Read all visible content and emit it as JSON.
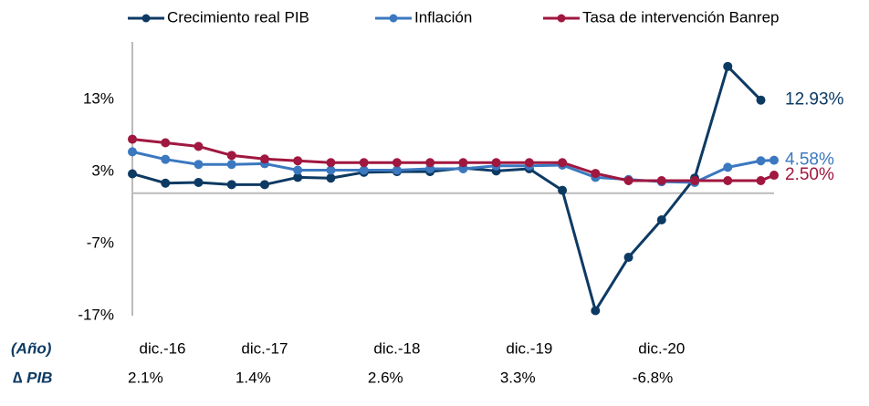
{
  "chart_data": {
    "type": "line",
    "x": [
      0,
      1,
      2,
      3,
      4,
      5,
      6,
      7,
      8,
      9,
      10,
      11,
      12,
      13,
      14,
      15,
      16,
      17,
      18,
      19,
      19.4
    ],
    "xlim": [
      0,
      19.4
    ],
    "xticks": [
      {
        "value": 0,
        "label": "dic.-16"
      },
      {
        "value": 4,
        "label": "dic.-17"
      },
      {
        "value": 8,
        "label": "dic.-18"
      },
      {
        "value": 12,
        "label": "dic.-19"
      },
      {
        "value": 16,
        "label": "dic.-20"
      }
    ],
    "ylim": [
      -17,
      21
    ],
    "yticks": [
      {
        "value": -17,
        "label": "-17%"
      },
      {
        "value": -7,
        "label": "-7%"
      },
      {
        "value": 3,
        "label": "3%"
      },
      {
        "value": 13,
        "label": "13%"
      }
    ],
    "grid": false,
    "legend": "top",
    "series": [
      {
        "name": "Crecimiento real PIB",
        "color": "#0d3a63",
        "values": [
          2.7,
          1.4,
          1.5,
          1.2,
          1.2,
          2.2,
          2.1,
          2.9,
          3.0,
          3.0,
          3.5,
          3.1,
          3.4,
          0.4,
          -16.3,
          -8.9,
          -3.7,
          2.1,
          17.6,
          12.93,
          null
        ],
        "value_labels": [
          null,
          null,
          null,
          null,
          null,
          null,
          null,
          null,
          null,
          null,
          null,
          null,
          null,
          null,
          null,
          null,
          null,
          null,
          null,
          "12.93%",
          null
        ]
      },
      {
        "name": "Inflación",
        "color": "#3b78c0",
        "values": [
          5.75,
          4.7,
          4.0,
          4.0,
          4.1,
          3.2,
          3.2,
          3.2,
          3.2,
          3.4,
          3.4,
          3.8,
          3.8,
          3.9,
          2.2,
          1.9,
          1.6,
          1.5,
          3.6,
          4.5,
          4.58
        ],
        "value_labels": [
          null,
          null,
          null,
          null,
          null,
          null,
          null,
          null,
          null,
          null,
          null,
          null,
          null,
          null,
          null,
          null,
          null,
          null,
          null,
          null,
          "4.58%"
        ]
      },
      {
        "name": "Tasa de intervención Banrep",
        "color": "#a0173f",
        "values": [
          7.5,
          7.0,
          6.5,
          5.25,
          4.75,
          4.5,
          4.25,
          4.25,
          4.25,
          4.25,
          4.25,
          4.25,
          4.25,
          4.25,
          2.75,
          1.75,
          1.75,
          1.75,
          1.75,
          1.75,
          2.5
        ],
        "value_labels": [
          null,
          null,
          null,
          null,
          null,
          null,
          null,
          null,
          null,
          null,
          null,
          null,
          null,
          null,
          null,
          null,
          null,
          null,
          null,
          null,
          "2.50%"
        ]
      }
    ],
    "annotations": {
      "year_label": "(Año)",
      "gdp_label": "∆ PIB",
      "gdp_values": [
        "2.1%",
        "1.4%",
        "2.6%",
        "3.3%",
        "-6.8%"
      ]
    }
  }
}
